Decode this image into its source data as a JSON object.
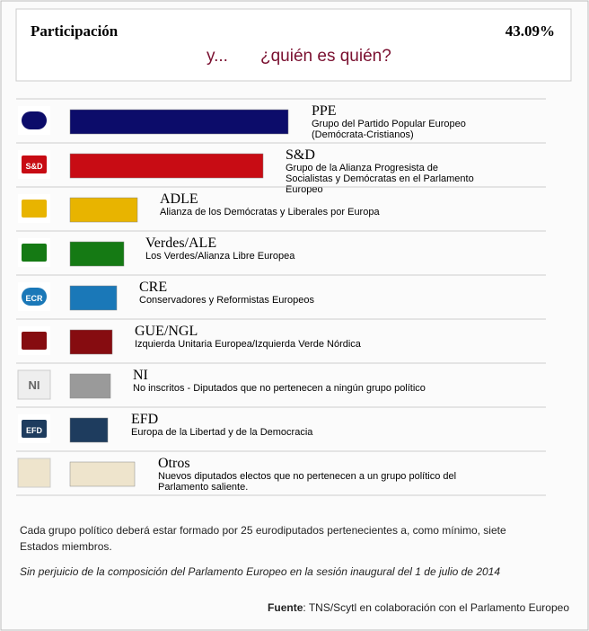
{
  "header": {
    "title": "Participación",
    "turnout": "43.09%",
    "subtitle_a": "y...",
    "subtitle_b": "¿quién es quién?"
  },
  "groups": [
    {
      "name": "PPE",
      "description": [
        "Grupo del Partido Popular Europeo",
        "(Demócrata-Cristianos)"
      ],
      "color": "#0c0c6a",
      "logo_text": null
    },
    {
      "name": "S&D",
      "description": [
        "Grupo de la Alianza Progresista de",
        "Socialistas y Demócratas en el Parlamento",
        "Europeo"
      ],
      "color": "#c80c14",
      "logo_text": "S&D"
    },
    {
      "name": "ADLE",
      "description": [
        "Alianza de los Demócratas y Liberales por Europa"
      ],
      "color": "#e8b400",
      "logo_text": null
    },
    {
      "name": "Verdes/ALE",
      "description": [
        "Los Verdes/Alianza Libre Europea"
      ],
      "color": "#157a14",
      "logo_text": null
    },
    {
      "name": "CRE",
      "description": [
        "Conservadores y Reformistas Europeos"
      ],
      "color": "#1a78b8",
      "logo_text": "ECR"
    },
    {
      "name": "GUE/NGL",
      "description": [
        "Izquierda Unitaria Europea/Izquierda Verde Nórdica"
      ],
      "color": "#860c10",
      "logo_text": null
    },
    {
      "name": "NI",
      "description": [
        "No inscritos - Diputados que no pertenecen a ningún grupo político"
      ],
      "color": "#9a9a9a",
      "logo_text": "NI"
    },
    {
      "name": "EFD",
      "description": [
        "Europa de la Libertad y de la Democracia"
      ],
      "color": "#1e3c5e",
      "logo_text": "EFD"
    },
    {
      "name": "Otros",
      "description": [
        "Nuevos diputados electos que no pertenecen a un grupo político del",
        "Parlamento saliente."
      ],
      "color": "#eee4cc",
      "logo_text": null
    }
  ],
  "footer": {
    "note": [
      "Cada grupo político deberá estar formado por 25 eurodiputados pertenecientes a, como mínimo, siete",
      "Estados miembros."
    ],
    "disclaimer": "Sin perjuicio de la composición del Parlamento Europeo en la sesión inaugural del 1 de julio de 2014",
    "source_label": "Fuente",
    "source_text": ": TNS/Scytl en colaboración con el Parlamento Europeo"
  }
}
